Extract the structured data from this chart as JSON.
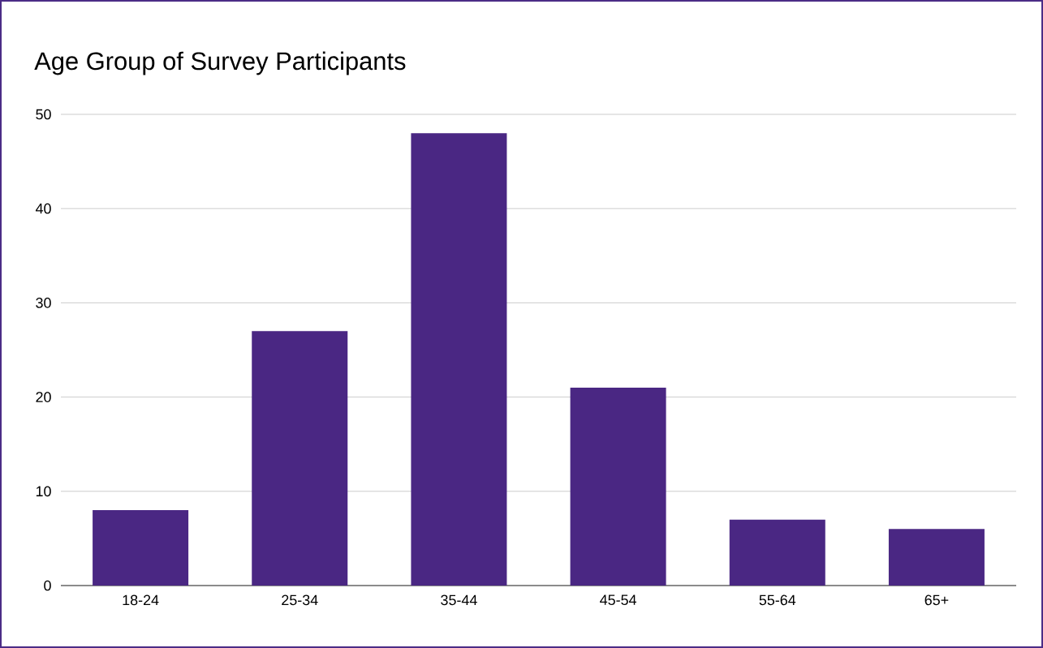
{
  "chart_data": {
    "type": "bar",
    "title": "Age Group of Survey Participants",
    "categories": [
      "18-24",
      "25-34",
      "35-44",
      "45-54",
      "55-64",
      "65+"
    ],
    "values": [
      8,
      27,
      48,
      21,
      7,
      6
    ],
    "color": "#4a2783",
    "ylim": [
      0,
      50
    ],
    "yticks": [
      0,
      10,
      20,
      30,
      40,
      50
    ],
    "grid": "y"
  }
}
